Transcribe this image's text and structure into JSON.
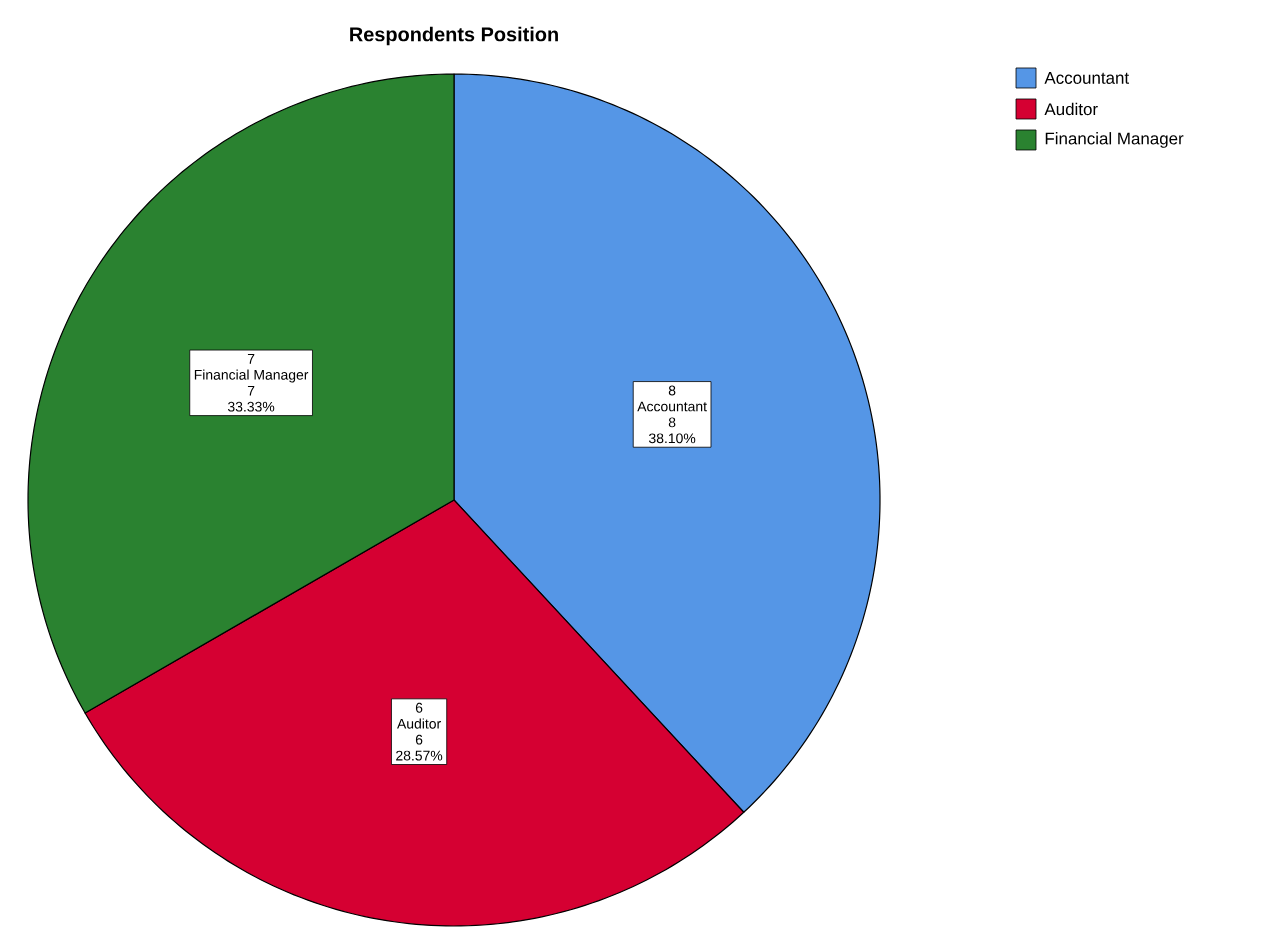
{
  "chart_data": {
    "type": "pie",
    "title": "Respondents Position",
    "categories": [
      "Accountant",
      "Auditor",
      "Financial Manager"
    ],
    "values": [
      8,
      6,
      7
    ],
    "colors": [
      "#5596e6",
      "#d50032",
      "#2a8230"
    ],
    "data_labels": true,
    "value_labels": [
      "8",
      "6",
      "7"
    ],
    "annotations": [
      "38.10%",
      "28.57%",
      "33.33%"
    ],
    "legend": "top right"
  }
}
